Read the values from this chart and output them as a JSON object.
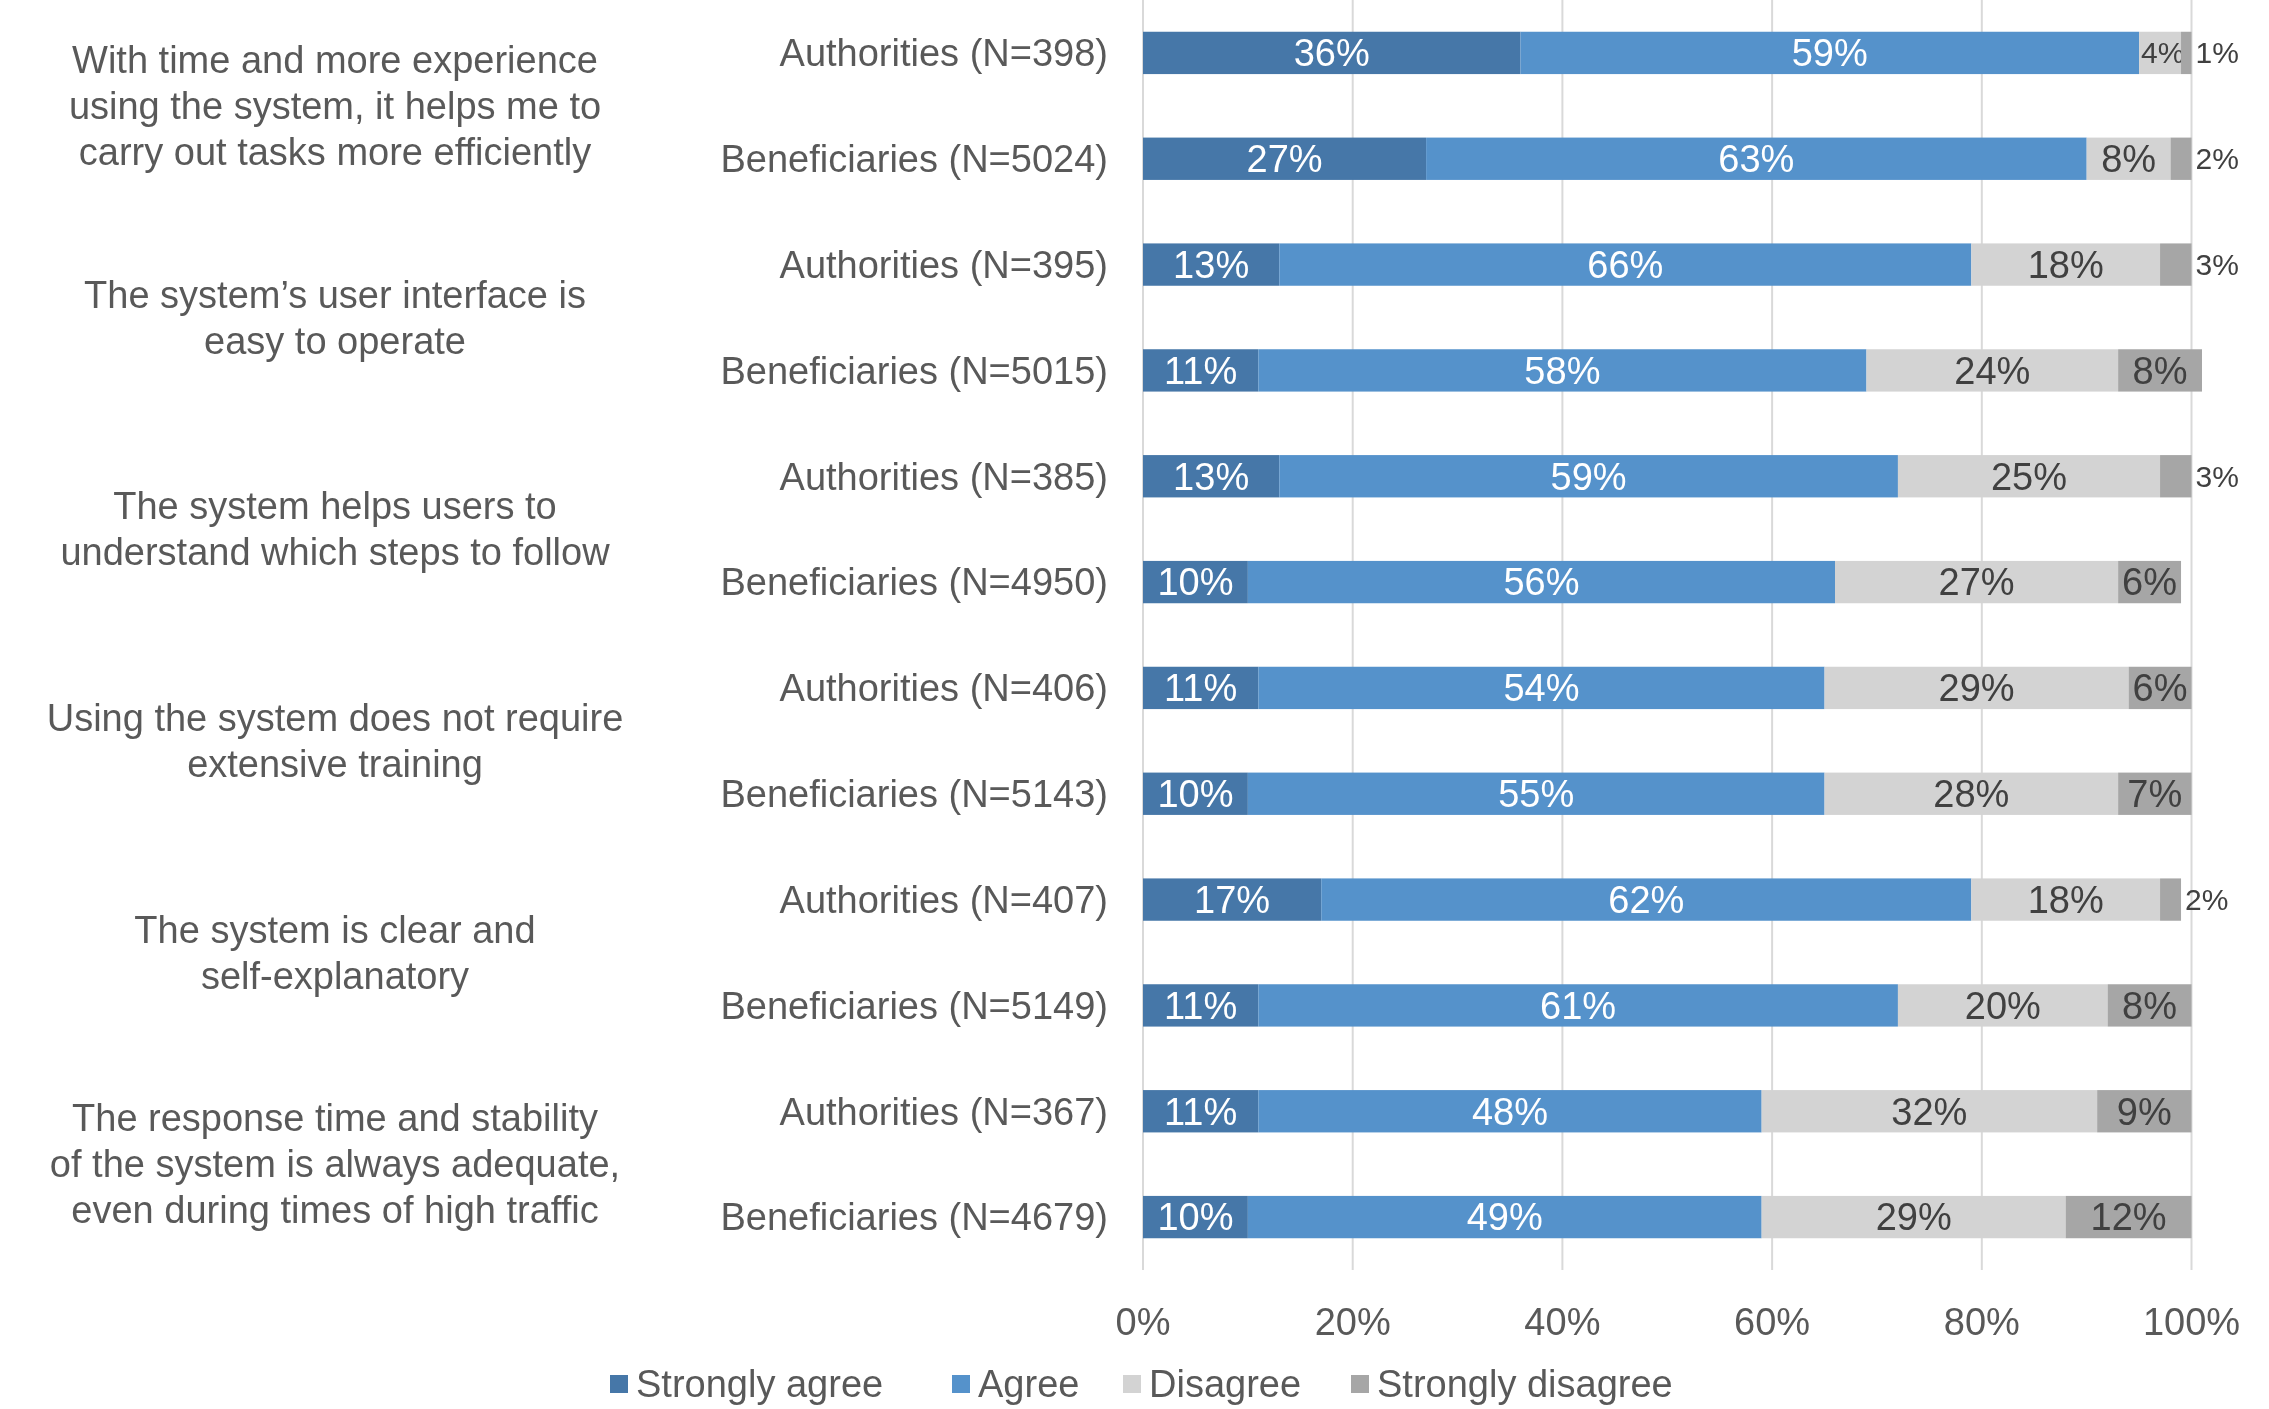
{
  "chart_data": {
    "type": "bar",
    "orientation": "horizontal",
    "stacked": true,
    "grid": "x",
    "legend": "bottom",
    "categories": [
      "Authorities (N=398)",
      "Beneficiaries (N=5024)",
      "Authorities (N=395)",
      "Beneficiaries (N=5015)",
      "Authorities (N=385)",
      "Beneficiaries (N=4950)",
      "Authorities (N=406)",
      "Beneficiaries (N=5143)",
      "Authorities (N=407)",
      "Beneficiaries (N=5149)",
      "Authorities (N=367)",
      "Beneficiaries (N=4679)"
    ],
    "series": [
      {
        "name": "Strongly agree",
        "color": "#4677a8",
        "values": [
          36,
          27,
          13,
          11,
          13,
          10,
          11,
          10,
          17,
          11,
          11,
          10
        ],
        "value_labels": [
          "36%",
          "27%",
          "13%",
          "11%",
          "13%",
          "10%",
          "11%",
          "10%",
          "17%",
          "11%",
          "11%",
          "10%"
        ]
      },
      {
        "name": "Agree",
        "color": "#5592cb",
        "values": [
          59,
          63,
          66,
          58,
          59,
          56,
          54,
          55,
          62,
          61,
          48,
          49
        ],
        "value_labels": [
          "59%",
          "63%",
          "66%",
          "58%",
          "59%",
          "56%",
          "54%",
          "55%",
          "62%",
          "61%",
          "48%",
          "49%"
        ]
      },
      {
        "name": "Disagree",
        "color": "#d3d3d3",
        "values": [
          4,
          8,
          18,
          24,
          25,
          27,
          29,
          28,
          18,
          20,
          32,
          29
        ],
        "value_labels": [
          "4%",
          "8%",
          "18%",
          "24%",
          "25%",
          "27%",
          "29%",
          "28%",
          "18%",
          "20%",
          "32%",
          "29%"
        ]
      },
      {
        "name": "Strongly disagree",
        "color": "#a6a6a6",
        "values": [
          1,
          2,
          3,
          8,
          3,
          6,
          6,
          7,
          2,
          8,
          9,
          12
        ],
        "value_labels": [
          "1%",
          "2%",
          "3%",
          "8%",
          "3%",
          "6%",
          "6%",
          "7%",
          "2%",
          "8%",
          "9%",
          "12%"
        ]
      }
    ],
    "xlim": [
      0,
      101
    ],
    "xticks": [
      {
        "value": 0,
        "label": "0%"
      },
      {
        "value": 20,
        "label": "20%"
      },
      {
        "value": 40,
        "label": "40%"
      },
      {
        "value": 60,
        "label": "60%"
      },
      {
        "value": 80,
        "label": "80%"
      },
      {
        "value": 100,
        "label": "100%"
      }
    ],
    "annotations": [
      "With time and more experience using the system, it helps me to carry out tasks more efficiently",
      "The system’s user interface is easy to operate",
      "The system helps users to understand which steps to follow",
      "Using the system does not require extensive training",
      "The system is clear and self-explanatory",
      "The response time and stability of the system is always adequate, even during times of high traffic"
    ]
  }
}
